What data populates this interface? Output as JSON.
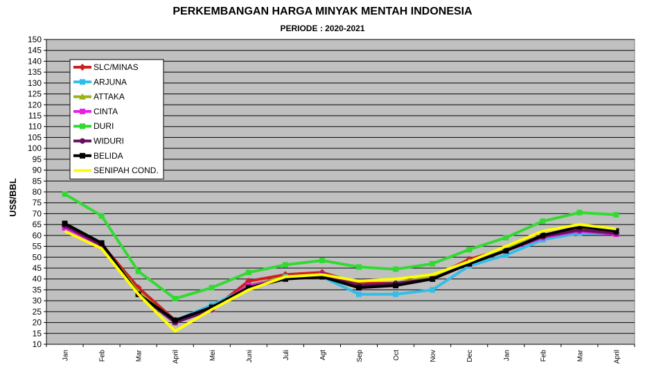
{
  "chart_data": {
    "type": "line",
    "title": "PERKEMBANGAN HARGA MINYAK MENTAH INDONESIA",
    "subtitle": "PERIODE  : 2020-2021",
    "ylabel": "US$/BBL",
    "xlabel": "",
    "ylim": [
      10,
      150
    ],
    "ytick_step": 5,
    "grid": true,
    "plot_background": "#c0c0c0",
    "legend_position": "top-left",
    "categories": [
      "Jan",
      "Feb",
      "Mar",
      "April",
      "Mei",
      "Juni",
      "Juli",
      "Agt",
      "Sep",
      "Oct",
      "Nov",
      "Dec",
      "Jan",
      "Feb",
      "Mar",
      "April"
    ],
    "series": [
      {
        "name": "SLC/MINAS",
        "color": "#cc1f1f",
        "marker": "diamond",
        "values": [
          64.5,
          56,
          36,
          21,
          26,
          39,
          42,
          43,
          38,
          38,
          41,
          49,
          54,
          60,
          63,
          61
        ]
      },
      {
        "name": "ARJUNA",
        "color": "#33bde8",
        "marker": "square",
        "values": [
          64,
          55,
          33,
          21,
          28,
          36,
          41,
          41,
          33,
          33,
          35,
          46,
          51,
          58,
          61,
          61
        ]
      },
      {
        "name": "ATTAKA",
        "color": "#99b21a",
        "marker": "triangle",
        "values": [
          65,
          56,
          34,
          20,
          26,
          37,
          41,
          42,
          37,
          38,
          41,
          48,
          54,
          60,
          63,
          62
        ]
      },
      {
        "name": "CINTA",
        "color": "#e61ee6",
        "marker": "square",
        "values": [
          63.5,
          55,
          33,
          20,
          26,
          37,
          40,
          42,
          36,
          37,
          40,
          47,
          53,
          59,
          62,
          60.5
        ]
      },
      {
        "name": "DURI",
        "color": "#33d933",
        "marker": "square",
        "values": [
          79,
          69,
          43.5,
          31,
          36,
          43,
          46.5,
          48.5,
          45.5,
          44.5,
          47,
          53.5,
          59,
          66.5,
          70.5,
          69.5
        ]
      },
      {
        "name": "WIDURI",
        "color": "#66105c",
        "marker": "circle",
        "values": [
          64.5,
          55.5,
          33,
          20,
          26,
          36,
          40,
          42,
          37,
          38,
          40,
          47,
          53,
          59.5,
          62.5,
          61
        ]
      },
      {
        "name": "BELIDA",
        "color": "#000000",
        "marker": "square",
        "values": [
          65.5,
          56.5,
          33,
          21,
          27,
          36,
          40,
          41,
          36,
          37,
          40,
          47,
          53,
          60,
          64,
          62
        ]
      },
      {
        "name": "SENIPAH COND.",
        "color": "#ffff00",
        "marker": "none",
        "values": [
          62,
          54,
          33,
          16,
          26,
          35,
          41,
          42,
          39,
          40,
          42,
          48,
          55,
          62,
          65,
          63
        ]
      }
    ]
  }
}
